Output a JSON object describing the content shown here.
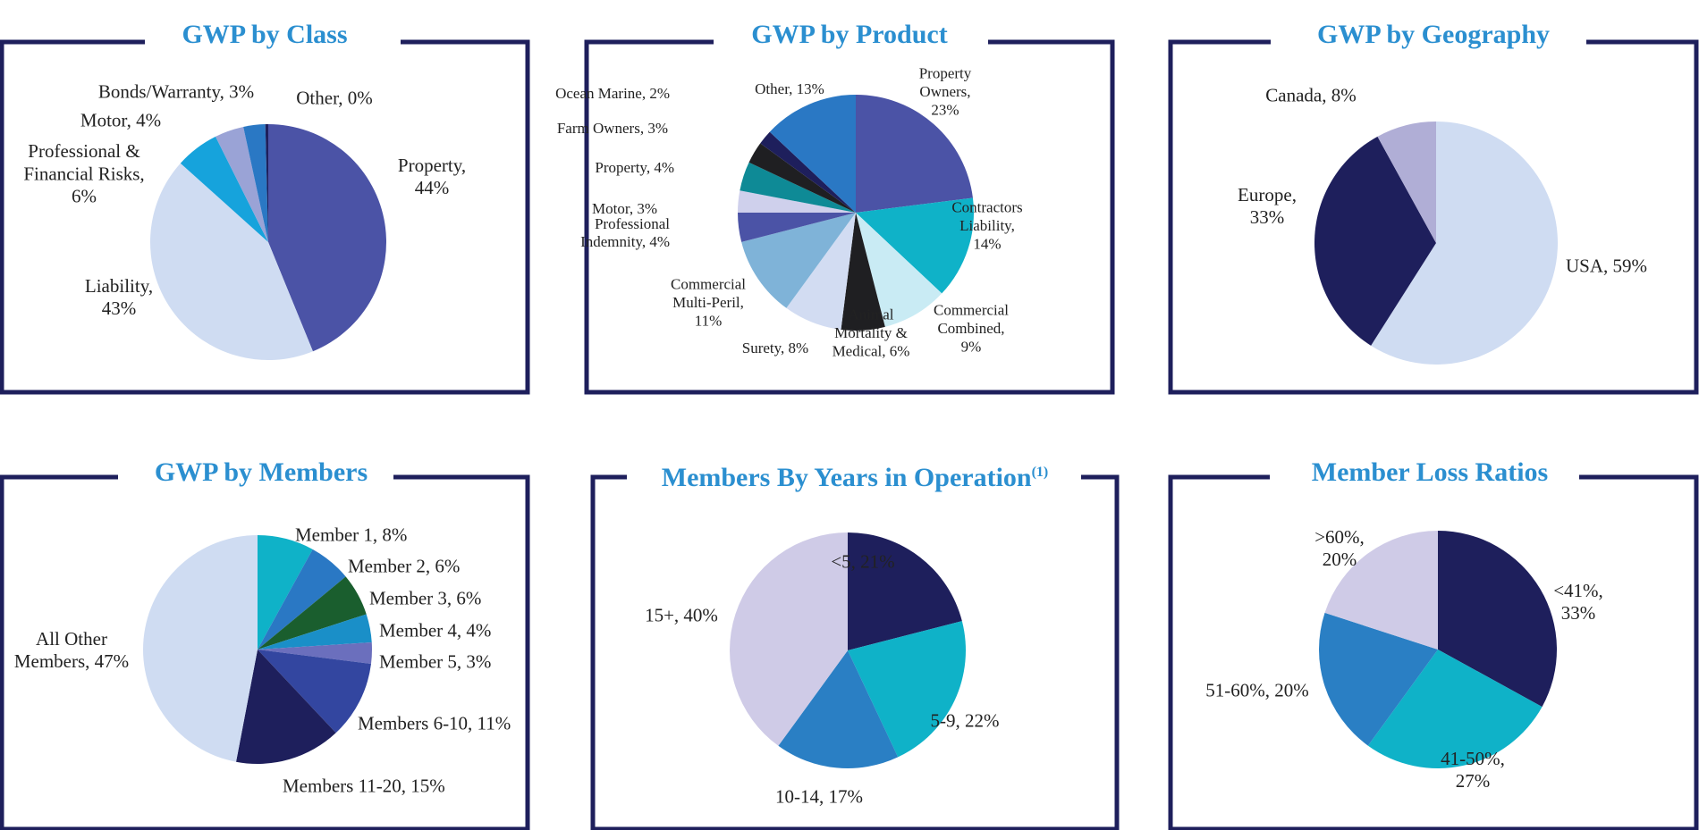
{
  "chart_data": [
    {
      "type": "pie",
      "title": "GWP by Class",
      "slices": [
        {
          "label": [
            "Property,",
            "44%"
          ],
          "value": 44,
          "color": "#4b53a6"
        },
        {
          "label": [
            "Liability,",
            "43%"
          ],
          "value": 43,
          "color": "#cfdcf2"
        },
        {
          "label": [
            "Professional &",
            "Financial Risks,",
            "6%"
          ],
          "value": 6,
          "color": "#16a3dc"
        },
        {
          "label": [
            "Motor, 4%"
          ],
          "value": 4,
          "color": "#9aa3d6"
        },
        {
          "label": [
            "Bonds/Warranty, 3%"
          ],
          "value": 3,
          "color": "#2a78c4"
        },
        {
          "label": [
            "Other, 0%"
          ],
          "value": 0.4,
          "color": "#1e1f5c"
        }
      ]
    },
    {
      "type": "pie",
      "title": "GWP by Product",
      "slices": [
        {
          "label": [
            "Property",
            "Owners,",
            "23%"
          ],
          "value": 23,
          "color": "#4b53a6"
        },
        {
          "label": [
            "Contractors",
            "Liability,",
            "14%"
          ],
          "value": 14,
          "color": "#0fb2c8"
        },
        {
          "label": [
            "Commercial",
            "Combined,",
            "9%"
          ],
          "value": 9,
          "color": "#c9ebf4"
        },
        {
          "label": [
            "Animal",
            "Mortality &",
            "Medical, 6%"
          ],
          "value": 6,
          "color": "#1f1f22"
        },
        {
          "label": [
            "Surety, 8%"
          ],
          "value": 8,
          "color": "#d2dcf2"
        },
        {
          "label": [
            "Commercial",
            "Multi-Peril,",
            "11%"
          ],
          "value": 11,
          "color": "#7fb3d8"
        },
        {
          "label": [
            "Professional",
            "Indemnity, 4%"
          ],
          "value": 4,
          "color": "#4b53a6"
        },
        {
          "label": [
            "Motor, 3%"
          ],
          "value": 3,
          "color": "#cfd0ec"
        },
        {
          "label": [
            "Property, 4%"
          ],
          "value": 4,
          "color": "#0e8a96"
        },
        {
          "label": [
            "Farm Owners, 3%"
          ],
          "value": 3,
          "color": "#1f1f22"
        },
        {
          "label": [
            "Ocean Marine, 2%"
          ],
          "value": 2,
          "color": "#1e1f5c"
        },
        {
          "label": [
            "Other, 13%"
          ],
          "value": 13,
          "color": "#2a78c4"
        }
      ]
    },
    {
      "type": "pie",
      "title": "GWP by Geography",
      "slices": [
        {
          "label": [
            "USA, 59%"
          ],
          "value": 59,
          "color": "#cfdcf2"
        },
        {
          "label": [
            "Europe,",
            "33%"
          ],
          "value": 33,
          "color": "#1e1f5c"
        },
        {
          "label": [
            "Canada, 8%"
          ],
          "value": 8,
          "color": "#b0aed6"
        }
      ]
    },
    {
      "type": "pie",
      "title": "GWP by Members",
      "slices": [
        {
          "label": [
            "Member 1, 8%"
          ],
          "value": 8,
          "color": "#0fb2c8"
        },
        {
          "label": [
            "Member 2, 6%"
          ],
          "value": 6,
          "color": "#2a78c4"
        },
        {
          "label": [
            "Member 3, 6%"
          ],
          "value": 6,
          "color": "#1a5e2e"
        },
        {
          "label": [
            "Member 4, 4%"
          ],
          "value": 4,
          "color": "#1a8fc8"
        },
        {
          "label": [
            "Member 5, 3%"
          ],
          "value": 3,
          "color": "#6b6fbd"
        },
        {
          "label": [
            "Members 6-10, 11%"
          ],
          "value": 11,
          "color": "#3346a0"
        },
        {
          "label": [
            "Members 11-20, 15%"
          ],
          "value": 15,
          "color": "#1e1f5c"
        },
        {
          "label": [
            "All Other",
            "Members, 47%"
          ],
          "value": 47,
          "color": "#cfdcf2"
        }
      ]
    },
    {
      "type": "pie",
      "title": "Members By Years in Operation",
      "title_superscript": "(1)",
      "slices": [
        {
          "label": [
            "<5, 21%"
          ],
          "value": 21,
          "color": "#1e1f5c"
        },
        {
          "label": [
            "5-9, 22%"
          ],
          "value": 22,
          "color": "#0fb2c8"
        },
        {
          "label": [
            "10-14, 17%"
          ],
          "value": 17,
          "color": "#2a7fc4"
        },
        {
          "label": [
            "15+, 40%"
          ],
          "value": 40,
          "color": "#cfcbe7"
        }
      ]
    },
    {
      "type": "pie",
      "title": "Member Loss Ratios",
      "slices": [
        {
          "label": [
            "<41%,",
            "33%"
          ],
          "value": 33,
          "color": "#1e1f5c"
        },
        {
          "label": [
            "41-50%,",
            "27%"
          ],
          "value": 27,
          "color": "#0fb2c8"
        },
        {
          "label": [
            "51-60%, 20%"
          ],
          "value": 20,
          "color": "#2a7fc4"
        },
        {
          "label": [
            ">60%,",
            "20%"
          ],
          "value": 20,
          "color": "#cfcbe7"
        }
      ]
    }
  ],
  "frame_color": "#1e1f5c",
  "title_color": "#2b8fd0"
}
